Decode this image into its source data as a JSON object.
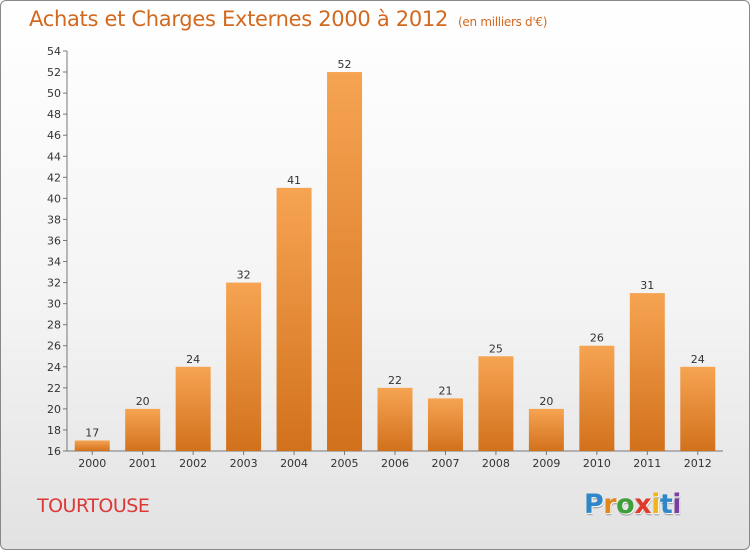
{
  "title": "Achats et Charges Externes 2000 à 2012",
  "subtitle": "(en milliers d'€)",
  "commune": "TOURTOUSE",
  "logo": {
    "letters": [
      "P",
      "r",
      "o",
      "x",
      "i",
      "t",
      "i"
    ]
  },
  "colors": {
    "bar_light": "#f6a452",
    "bar_dark": "#d2711c",
    "title": "#d2691e",
    "commune": "#dd3838",
    "logo": [
      "#2f86c8",
      "#e0871e",
      "#3f9e3a",
      "#e03b2a",
      "#f2b51b",
      "#2f86c8",
      "#7a3fa0"
    ]
  },
  "chart_data": {
    "type": "bar",
    "categories": [
      "2000",
      "2001",
      "2002",
      "2003",
      "2004",
      "2005",
      "2006",
      "2007",
      "2008",
      "2009",
      "2010",
      "2011",
      "2012"
    ],
    "values": [
      17,
      20,
      24,
      32,
      41,
      52,
      22,
      21,
      25,
      20,
      26,
      31,
      24
    ],
    "ylim": [
      16,
      54
    ],
    "yticks": [
      16,
      18,
      20,
      22,
      24,
      26,
      28,
      30,
      32,
      34,
      36,
      38,
      40,
      42,
      44,
      46,
      48,
      50,
      52,
      54
    ],
    "grid": false,
    "legend": "none"
  }
}
